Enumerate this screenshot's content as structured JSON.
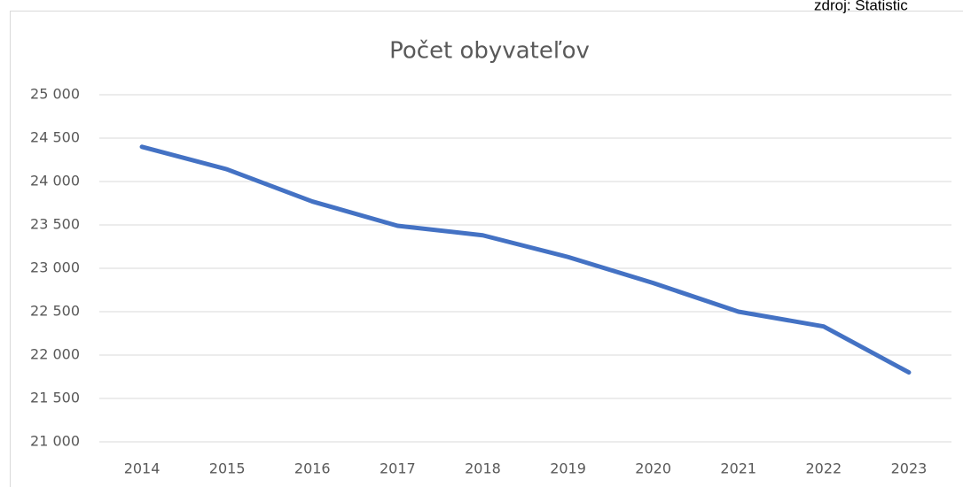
{
  "source": "zdroj: Statistic",
  "chart_data": {
    "type": "line",
    "title": "Počet obyvateľov",
    "categories": [
      "2014",
      "2015",
      "2016",
      "2017",
      "2018",
      "2019",
      "2020",
      "2021",
      "2022",
      "2023"
    ],
    "series": [
      {
        "name": "Počet obyvateľov",
        "color": "#4472c4",
        "values": [
          24400,
          24140,
          23770,
          23490,
          23380,
          23130,
          22830,
          22500,
          22330,
          21800
        ]
      }
    ],
    "ylim": [
      21000,
      25000
    ],
    "yticks": [
      {
        "value": 21000,
        "label": "21 000"
      },
      {
        "value": 21500,
        "label": "21 500"
      },
      {
        "value": 22000,
        "label": "22 000"
      },
      {
        "value": 22500,
        "label": "22 500"
      },
      {
        "value": 23000,
        "label": "23 000"
      },
      {
        "value": 23500,
        "label": "23 500"
      },
      {
        "value": 24000,
        "label": "24 000"
      },
      {
        "value": 24500,
        "label": "24 500"
      },
      {
        "value": 25000,
        "label": "25 000"
      }
    ],
    "grid": true
  }
}
